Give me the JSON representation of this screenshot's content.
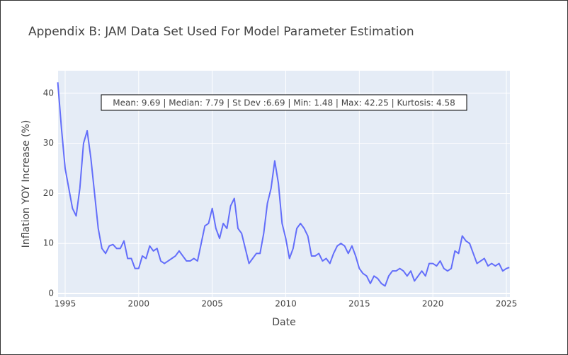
{
  "chart_data": {
    "type": "line",
    "title": "Appendix B: JAM Data Set Used For Model Parameter Estimation",
    "x_label": "Date",
    "y_label": "Inflation YOY Increase (%)",
    "annotation": "Mean: 9.69 | Median: 7.79 | St Dev :6.69 | Min: 1.48 | Max: 42.25 | Kurtosis: 4.58",
    "xlim": [
      1994.52,
      2025.24
    ],
    "ylim": [
      -0.7,
      44.5
    ],
    "xticks": [
      1995,
      2000,
      2005,
      2010,
      2015,
      2020,
      2025
    ],
    "yticks": [
      0,
      10,
      20,
      30,
      40
    ],
    "grid": true,
    "series": [
      {
        "color": "#636efa",
        "x": [
          1994.5,
          1994.75,
          1995,
          1995.25,
          1995.5,
          1995.75,
          1996,
          1996.25,
          1996.5,
          1996.75,
          1997,
          1997.25,
          1997.5,
          1997.75,
          1998,
          1998.25,
          1998.5,
          1998.75,
          1999,
          1999.25,
          1999.5,
          1999.75,
          2000,
          2000.25,
          2000.5,
          2000.75,
          2001,
          2001.25,
          2001.5,
          2001.75,
          2002,
          2002.25,
          2002.5,
          2002.75,
          2003,
          2003.25,
          2003.5,
          2003.75,
          2004,
          2004.25,
          2004.5,
          2004.75,
          2005,
          2005.25,
          2005.5,
          2005.75,
          2006,
          2006.25,
          2006.5,
          2006.75,
          2007,
          2007.25,
          2007.5,
          2007.75,
          2008,
          2008.25,
          2008.5,
          2008.75,
          2009,
          2009.25,
          2009.5,
          2009.75,
          2010,
          2010.25,
          2010.5,
          2010.75,
          2011,
          2011.25,
          2011.5,
          2011.75,
          2012,
          2012.25,
          2012.5,
          2012.75,
          2013,
          2013.25,
          2013.5,
          2013.75,
          2014,
          2014.25,
          2014.5,
          2014.75,
          2015,
          2015.25,
          2015.5,
          2015.75,
          2016,
          2016.25,
          2016.5,
          2016.75,
          2017,
          2017.25,
          2017.5,
          2017.75,
          2018,
          2018.25,
          2018.5,
          2018.75,
          2019,
          2019.25,
          2019.5,
          2019.75,
          2020,
          2020.25,
          2020.5,
          2020.75,
          2021,
          2021.25,
          2021.5,
          2021.75,
          2022,
          2022.25,
          2022.5,
          2022.75,
          2023,
          2023.25,
          2023.5,
          2023.75,
          2024,
          2024.25,
          2024.5,
          2024.75,
          2025,
          2025.2
        ],
        "values": [
          42.2,
          33,
          25,
          21,
          17,
          15.5,
          21,
          30,
          32.5,
          27,
          20,
          13,
          9,
          8,
          9.5,
          9.8,
          9,
          9,
          10.5,
          7,
          7,
          5,
          5,
          7.5,
          7,
          9.5,
          8.5,
          9,
          6.5,
          6,
          6.5,
          7,
          7.5,
          8.5,
          7.5,
          6.5,
          6.5,
          7,
          6.5,
          10,
          13.5,
          14,
          17,
          13,
          11,
          14,
          13,
          17.5,
          19,
          13,
          12,
          9,
          6,
          7,
          8,
          8,
          12,
          18,
          21,
          26.5,
          22,
          14,
          11,
          7,
          9,
          13,
          14,
          13,
          11.5,
          7.5,
          7.5,
          8,
          6.5,
          7,
          6,
          8,
          9.5,
          10,
          9.5,
          8,
          9.5,
          7.5,
          5,
          4,
          3.5,
          2,
          3.5,
          3,
          2,
          1.5,
          3.5,
          4.5,
          4.5,
          5,
          4.5,
          3.5,
          4.5,
          2.5,
          3.5,
          4.5,
          3.5,
          6,
          6,
          5.5,
          6.5,
          5,
          4.5,
          5,
          8.5,
          8,
          11.5,
          10.5,
          10,
          8,
          6,
          6.5,
          7,
          5.5,
          6,
          5.5,
          6,
          4.5,
          5,
          5.2
        ]
      }
    ]
  }
}
